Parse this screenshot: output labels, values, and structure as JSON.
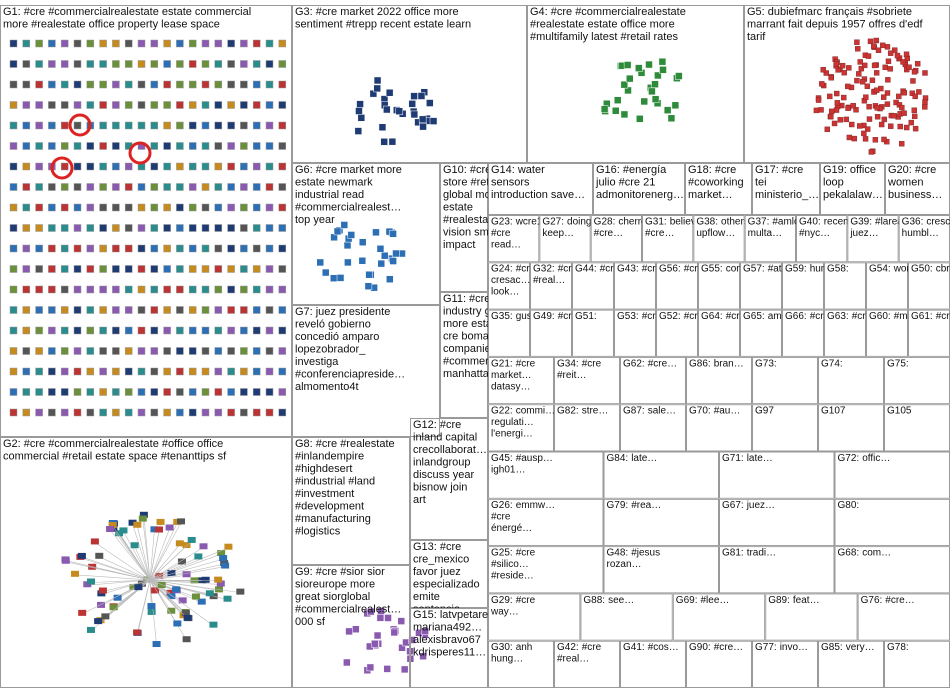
{
  "groups": [
    {
      "label": "G1:",
      "lines": [
        "#cre #commercialrealestate estate commercial",
        "more #realestate office property lease space"
      ]
    },
    {
      "label": "G2:",
      "lines": [
        "#cre #commercialrealestate #office office",
        "commercial #retail estate space #tenanttips sf"
      ]
    },
    {
      "label": "G3:",
      "lines": [
        "#cre market 2022 office more",
        "sentiment #trepp recent estate learn"
      ]
    },
    {
      "label": "G4:",
      "lines": [
        "#cre #commercialrealestate",
        "#realestate estate office more",
        "#multifamily latest #retail rates"
      ]
    },
    {
      "label": "G5:",
      "lines": [
        "dubiefmarc français #sobriete",
        "marrant fait depuis 1957 offres d'edf",
        "tarif"
      ]
    },
    {
      "label": "G6:",
      "lines": [
        "#cre market more",
        "estate newmark",
        "industrial read",
        "#commercialrealest…",
        "top year"
      ]
    },
    {
      "label": "G10:",
      "lines": [
        "#cre",
        "store #retail",
        "global more",
        "estate",
        "#realestate",
        "vision small",
        "impact"
      ]
    },
    {
      "label": "G14:",
      "lines": [
        "water",
        "sensors",
        "introduction save…"
      ]
    },
    {
      "label": "G16:",
      "lines": [
        "#energía",
        "julio #cre 21",
        "admonitorenerg…"
      ]
    },
    {
      "label": "G18:",
      "lines": [
        "#cre",
        "#coworking",
        "market…"
      ]
    },
    {
      "label": "G17:",
      "lines": [
        "#cre",
        "tei",
        "ministerio_…"
      ]
    },
    {
      "label": "G19:",
      "lines": [
        "office",
        "loop",
        "pekalalaw…"
      ]
    },
    {
      "label": "G20:",
      "lines": [
        "#cre",
        "women",
        "business…"
      ]
    },
    {
      "label": "G7:",
      "lines": [
        "juez presidente",
        "reveló gobierno",
        "concedió amparo",
        "lopezobrador_",
        "investiga",
        "#conferenciapreside…",
        "almomento4t"
      ]
    },
    {
      "label": "G11:",
      "lines": [
        "#cre",
        "industry gt",
        "more estate",
        "cre bomaintl",
        "companies",
        "#commercial…",
        "manhattan"
      ]
    },
    {
      "label": "G8:",
      "lines": [
        "#cre #realestate",
        "#inlandempire",
        "#highdesert",
        "#industrial #land",
        "#investment",
        "#development",
        "#manufacturing",
        "#logistics"
      ]
    },
    {
      "label": "G12:",
      "lines": [
        "#cre",
        "inland capital",
        "crecollaborat…",
        "inlandgroup",
        "discuss year",
        "bisnow join",
        "art"
      ]
    },
    {
      "label": "G9:",
      "lines": [
        "#cre #sior sior",
        "sioreurope more",
        "great siorglobal",
        "#commercialrealest…",
        "000 sf"
      ]
    },
    {
      "label": "G13:",
      "lines": [
        "#cre",
        "cre_mexico",
        "favor juez",
        "especializado",
        "emite",
        "sentencia…"
      ]
    },
    {
      "label": "G15:",
      "lines": [
        "latvpetare",
        "mariana492…",
        "alexisbravo67",
        "kdrisperes11…"
      ]
    }
  ],
  "grid_rows": [
    [
      {
        "label": "G23:",
        "lines": [
          "wcre1…",
          "#cre",
          "read…"
        ]
      },
      {
        "label": "G27:",
        "lines": [
          "doing",
          "keep…"
        ]
      },
      {
        "label": "G28:",
        "lines": [
          "cherrec…",
          "#cre…"
        ]
      },
      {
        "label": "G31:",
        "lines": [
          "believe",
          "#cre…"
        ]
      },
      {
        "label": "G38:",
        "lines": [
          "others",
          "upflow…"
        ]
      },
      {
        "label": "G37:",
        "lines": [
          "#amlo",
          "multa…"
        ]
      },
      {
        "label": "G40:",
        "lines": [
          "recent",
          "#nyc…"
        ]
      },
      {
        "label": "G39:",
        "lines": [
          "#larea…",
          "juez…"
        ]
      },
      {
        "label": "G36:",
        "lines": [
          "cresc…",
          "humbl…"
        ]
      }
    ],
    [
      {
        "label": "G24:",
        "lines": [
          "#cre",
          "cresac…",
          "look…"
        ]
      },
      {
        "label": "G32:",
        "lines": [
          "#cre",
          "#real…"
        ]
      },
      {
        "label": "G44:",
        "lines": [
          "#cre…"
        ]
      },
      {
        "label": "G43:",
        "lines": [
          "#cre…"
        ]
      },
      {
        "label": "G56:",
        "lines": [
          "#cre…"
        ]
      },
      {
        "label": "G55:",
        "lines": [
          "confe…"
        ]
      },
      {
        "label": "G57:",
        "lines": [
          "#atlan…"
        ]
      },
      {
        "label": "G59:",
        "lines": [
          "hunt…"
        ]
      },
      {
        "label": "G58:",
        "lines": []
      },
      {
        "label": "G54:",
        "lines": [
          "won2…"
        ]
      },
      {
        "label": "G50:",
        "lines": [
          "cbrec…"
        ]
      }
    ],
    [
      {
        "label": "G35:",
        "lines": [
          "guste…"
        ]
      },
      {
        "label": "G49:",
        "lines": [
          "#cre…"
        ]
      },
      {
        "label": "G51:",
        "lines": []
      },
      {
        "label": "G53:",
        "lines": [
          "#cre…"
        ]
      },
      {
        "label": "G52:",
        "lines": [
          "#cre…"
        ]
      },
      {
        "label": "G64:",
        "lines": [
          "#cre…"
        ]
      },
      {
        "label": "G65:",
        "lines": [
          "ama…"
        ]
      },
      {
        "label": "G66:",
        "lines": [
          "#cre…"
        ]
      },
      {
        "label": "G63:",
        "lines": [
          "#cre…"
        ]
      },
      {
        "label": "G60:",
        "lines": [
          "#me…"
        ]
      },
      {
        "label": "G61:",
        "lines": [
          "#cre…"
        ]
      }
    ],
    [
      {
        "label": "G21:",
        "lines": [
          "#cre",
          "market…",
          "datasy…"
        ]
      },
      {
        "label": "G34:",
        "lines": [
          "#cre",
          "#reit…"
        ]
      },
      {
        "label": "G62:",
        "lines": [
          "#cre…"
        ]
      },
      {
        "label": "G86:",
        "lines": [
          "bran…"
        ]
      },
      {
        "label": "G73:",
        "lines": []
      },
      {
        "label": "G74:",
        "lines": []
      },
      {
        "label": "G75:",
        "lines": []
      }
    ],
    [
      {
        "label": "G22:",
        "lines": [
          "commi…",
          "regulati…",
          "l'energi…"
        ]
      },
      {
        "label": "G82:",
        "lines": [
          "stre…"
        ]
      },
      {
        "label": "G87:",
        "lines": [
          "sale…"
        ]
      },
      {
        "label": "G70:",
        "lines": [
          "#au…"
        ]
      },
      {
        "label": "G97",
        "lines": []
      },
      {
        "label": "G107",
        "lines": []
      },
      {
        "label": "G105",
        "lines": []
      }
    ],
    [
      {
        "label": "G45:",
        "lines": [
          "#ausp…",
          "igh01…"
        ]
      },
      {
        "label": "G84:",
        "lines": [
          "late…"
        ]
      },
      {
        "label": "G71:",
        "lines": [
          "late…"
        ]
      },
      {
        "label": "G72:",
        "lines": [
          "offic…"
        ]
      }
    ],
    [
      {
        "label": "G26:",
        "lines": [
          "emmw…",
          "#cre",
          "énergé…"
        ]
      },
      {
        "label": "G79:",
        "lines": [
          "#rea…"
        ]
      },
      {
        "label": "G67:",
        "lines": [
          "juez…"
        ]
      },
      {
        "label": "G80:",
        "lines": []
      }
    ],
    [
      {
        "label": "G25:",
        "lines": [
          "#cre",
          "#silico…",
          "#reside…"
        ]
      },
      {
        "label": "G48:",
        "lines": [
          "#jesus",
          "rozan…"
        ]
      },
      {
        "label": "G81:",
        "lines": [
          "tradi…"
        ]
      },
      {
        "label": "G68:",
        "lines": [
          "com…"
        ]
      }
    ],
    [
      {
        "label": "G29:",
        "lines": [
          "#cre",
          "way…"
        ]
      },
      {
        "label": "G88:",
        "lines": [
          "see…"
        ]
      },
      {
        "label": "G69:",
        "lines": [
          "#lee…"
        ]
      },
      {
        "label": "G89:",
        "lines": [
          "feat…"
        ]
      },
      {
        "label": "G76:",
        "lines": [
          "#cre…"
        ]
      }
    ],
    [
      {
        "label": "G30:",
        "lines": [
          "anh",
          "hung…"
        ]
      },
      {
        "label": "G42:",
        "lines": [
          "#cre",
          "#real…"
        ]
      },
      {
        "label": "G41:",
        "lines": [
          "#cos…"
        ]
      },
      {
        "label": "G90:",
        "lines": [
          "#cre…"
        ]
      },
      {
        "label": "G77:",
        "lines": [
          "invo…"
        ]
      },
      {
        "label": "G85:",
        "lines": [
          "very…"
        ]
      },
      {
        "label": "G78:",
        "lines": []
      }
    ]
  ]
}
